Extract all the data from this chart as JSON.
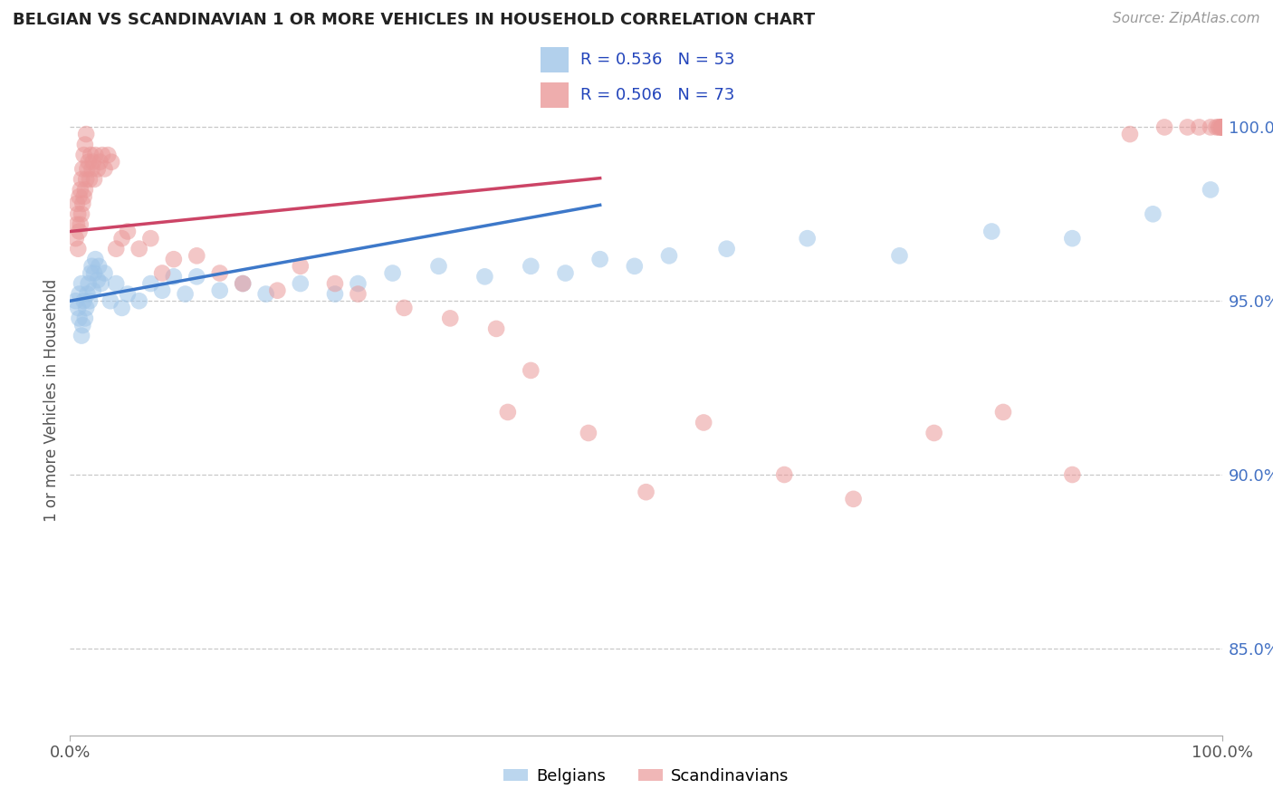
{
  "title": "BELGIAN VS SCANDINAVIAN 1 OR MORE VEHICLES IN HOUSEHOLD CORRELATION CHART",
  "source_text": "Source: ZipAtlas.com",
  "ylabel": "1 or more Vehicles in Household",
  "y_tick_labels": [
    "85.0%",
    "90.0%",
    "95.0%",
    "100.0%"
  ],
  "y_tick_values": [
    0.85,
    0.9,
    0.95,
    1.0
  ],
  "x_range": [
    0.0,
    1.0
  ],
  "y_range": [
    0.825,
    1.018
  ],
  "belgian_R": 0.536,
  "belgian_N": 53,
  "scandinavian_R": 0.506,
  "scandinavian_N": 73,
  "belgian_color": "#9fc5e8",
  "scandinavian_color": "#ea9999",
  "belgian_line_color": "#3d78c9",
  "scandinavian_line_color": "#cc4466",
  "legend_label_belgian": "Belgians",
  "legend_label_scandinavian": "Scandinavians",
  "background_color": "#ffffff",
  "grid_color": "#c8c8c8",
  "belgian_x": [
    0.005,
    0.007,
    0.008,
    0.008,
    0.01,
    0.01,
    0.011,
    0.012,
    0.013,
    0.014,
    0.015,
    0.016,
    0.017,
    0.018,
    0.019,
    0.02,
    0.021,
    0.022,
    0.024,
    0.025,
    0.027,
    0.03,
    0.035,
    0.04,
    0.045,
    0.05,
    0.06,
    0.07,
    0.08,
    0.09,
    0.1,
    0.11,
    0.13,
    0.15,
    0.17,
    0.2,
    0.23,
    0.25,
    0.28,
    0.32,
    0.36,
    0.4,
    0.43,
    0.46,
    0.49,
    0.52,
    0.57,
    0.64,
    0.72,
    0.8,
    0.87,
    0.94,
    0.99
  ],
  "belgian_y": [
    0.95,
    0.948,
    0.945,
    0.952,
    0.94,
    0.955,
    0.943,
    0.95,
    0.945,
    0.948,
    0.952,
    0.955,
    0.95,
    0.958,
    0.96,
    0.953,
    0.958,
    0.962,
    0.956,
    0.96,
    0.955,
    0.958,
    0.95,
    0.955,
    0.948,
    0.952,
    0.95,
    0.955,
    0.953,
    0.957,
    0.952,
    0.957,
    0.953,
    0.955,
    0.952,
    0.955,
    0.952,
    0.955,
    0.958,
    0.96,
    0.957,
    0.96,
    0.958,
    0.962,
    0.96,
    0.963,
    0.965,
    0.968,
    0.963,
    0.97,
    0.968,
    0.975,
    0.982
  ],
  "scandinavian_x": [
    0.005,
    0.006,
    0.006,
    0.007,
    0.007,
    0.008,
    0.008,
    0.009,
    0.009,
    0.01,
    0.01,
    0.011,
    0.011,
    0.012,
    0.012,
    0.013,
    0.013,
    0.014,
    0.014,
    0.015,
    0.016,
    0.017,
    0.018,
    0.019,
    0.02,
    0.021,
    0.022,
    0.024,
    0.026,
    0.028,
    0.03,
    0.033,
    0.036,
    0.04,
    0.045,
    0.05,
    0.06,
    0.07,
    0.08,
    0.09,
    0.11,
    0.13,
    0.15,
    0.18,
    0.2,
    0.23,
    0.25,
    0.29,
    0.33,
    0.37,
    0.38,
    0.4,
    0.45,
    0.5,
    0.55,
    0.62,
    0.68,
    0.75,
    0.81,
    0.87,
    0.92,
    0.95,
    0.97,
    0.98,
    0.99,
    0.995,
    0.997,
    0.998,
    1.0,
    1.0,
    1.0,
    1.0,
    1.0
  ],
  "scandinavian_y": [
    0.968,
    0.972,
    0.978,
    0.965,
    0.975,
    0.97,
    0.98,
    0.972,
    0.982,
    0.975,
    0.985,
    0.978,
    0.988,
    0.98,
    0.992,
    0.982,
    0.995,
    0.985,
    0.998,
    0.988,
    0.99,
    0.985,
    0.992,
    0.988,
    0.99,
    0.985,
    0.992,
    0.988,
    0.99,
    0.992,
    0.988,
    0.992,
    0.99,
    0.965,
    0.968,
    0.97,
    0.965,
    0.968,
    0.958,
    0.962,
    0.963,
    0.958,
    0.955,
    0.953,
    0.96,
    0.955,
    0.952,
    0.948,
    0.945,
    0.942,
    0.918,
    0.93,
    0.912,
    0.895,
    0.915,
    0.9,
    0.893,
    0.912,
    0.918,
    0.9,
    0.998,
    1.0,
    1.0,
    1.0,
    1.0,
    1.0,
    1.0,
    1.0,
    1.0,
    1.0,
    1.0,
    1.0,
    1.0
  ]
}
